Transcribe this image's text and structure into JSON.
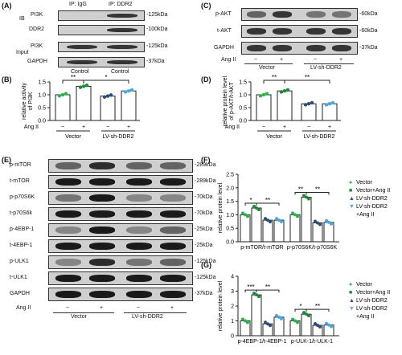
{
  "panels": {
    "A": "(A)",
    "B": "(B)",
    "C": "(C)",
    "D": "(D)",
    "E": "(E)",
    "F": "(F)",
    "G": "(G)"
  },
  "A": {
    "ip_igg": "IP: IgG",
    "ip_ddr2": "IP: DDR2",
    "ib": "IB",
    "input": "Input",
    "rows": [
      {
        "name": "PI3K",
        "kda": "-125kDa"
      },
      {
        "name": "DDR2",
        "kda": "-100kDa"
      },
      {
        "name": "PI3K",
        "kda": "-125kDa"
      },
      {
        "name": "GAPDH",
        "kda": "-37kDa"
      }
    ],
    "control1": "Control",
    "control2": "Control"
  },
  "C": {
    "rows": [
      {
        "name": "p-AKT",
        "kda": "-60kDa"
      },
      {
        "name": "t-AKT",
        "kda": "-60kDa"
      },
      {
        "name": "GAPDH",
        "kda": "-37kDa"
      }
    ],
    "angii": "Ang II",
    "minus": "−",
    "plus": "+",
    "vector": "Vector",
    "lv": "LV-sh-DDR2"
  },
  "E": {
    "rows": [
      {
        "name": "p-mTOR",
        "kda": "-289kDa"
      },
      {
        "name": "t-mTOR",
        "kda": "-289kDa"
      },
      {
        "name": "p-p70S6K",
        "kda": "-70kDa"
      },
      {
        "name": "t-p70S6k",
        "kda": "-70kDa"
      },
      {
        "name": "p-4EBP-1",
        "kda": "-25kDa"
      },
      {
        "name": "t-4EBP-1",
        "kda": "-25kDa"
      },
      {
        "name": "p-ULK1",
        "kda": "-125kDa"
      },
      {
        "name": "t-ULK1",
        "kda": "-125kDa"
      },
      {
        "name": "GAPDH",
        "kda": "-37kDa"
      }
    ],
    "angii": "Ang II",
    "minus": "−",
    "plus": "+",
    "vector": "Vector",
    "lv": "LV-sh-DDR2"
  },
  "sig": {
    "ss": "**",
    "s": "*",
    "sss": "***"
  },
  "legend": [
    "Vector",
    "Vector+Ang II",
    "LV-sh-DDR2",
    "LV-sh-DDR2",
    "+Ang II"
  ],
  "colors": {
    "vector": "#2db34a",
    "vector_ang": "#1f8a36",
    "lv": "#2a4f7a",
    "lv_ang": "#4aa8e0"
  },
  "chart_data": [
    {
      "type": "bar",
      "panel": "B",
      "ylabel": "relative activity of PI3K",
      "ylim": [
        0,
        1.5
      ],
      "yticks": [
        "0.0",
        "0.5",
        "1.0",
        "1.5"
      ],
      "xlabel_row": "Ang II",
      "groups": [
        "Vector",
        "LV-sh-DDR2"
      ],
      "categories": [
        "−",
        "+",
        "−",
        "+"
      ],
      "values": [
        1.0,
        1.33,
        0.95,
        1.15
      ]
    },
    {
      "type": "bar",
      "panel": "D",
      "ylabel": "relative protein level of p-AKT/t-AKT",
      "ylim": [
        0,
        1.5
      ],
      "yticks": [
        "0.0",
        "0.5",
        "1.0",
        "1.5"
      ],
      "xlabel_row": "Ang II",
      "groups": [
        "Vector",
        "LV-sh-DDR2"
      ],
      "categories": [
        "−",
        "+",
        "−",
        "+"
      ],
      "values": [
        1.0,
        1.15,
        0.65,
        0.65
      ]
    },
    {
      "type": "bar",
      "panel": "F",
      "ylabel": "relative protein level",
      "ylim": [
        0,
        2.5
      ],
      "yticks": [
        "0.0",
        "0.5",
        "1.0",
        "1.5",
        "2.0",
        "2.5"
      ],
      "groups": [
        "p-mTOR/t-mTOR",
        "p-p70S6K/t-p70S6K"
      ],
      "series": [
        {
          "name": "Vector",
          "values": [
            1.0,
            1.0
          ]
        },
        {
          "name": "Vector+Ang II",
          "values": [
            1.25,
            1.65
          ]
        },
        {
          "name": "LV-sh-DDR2",
          "values": [
            0.8,
            0.7
          ]
        },
        {
          "name": "LV-sh-DDR2 +Ang II",
          "values": [
            0.8,
            0.72
          ]
        }
      ]
    },
    {
      "type": "bar",
      "panel": "G",
      "ylabel": "relative protein level",
      "ylim": [
        0,
        4
      ],
      "yticks": [
        "0",
        "1",
        "2",
        "3",
        "4"
      ],
      "groups": [
        "p-4EBP-1/t-4EBP-1",
        "p-ULK-1/t-ULK-1"
      ],
      "series": [
        {
          "name": "Vector",
          "values": [
            1.0,
            1.0
          ]
        },
        {
          "name": "Vector+Ang II",
          "values": [
            2.75,
            1.45
          ]
        },
        {
          "name": "LV-sh-DDR2",
          "values": [
            0.8,
            0.7
          ]
        },
        {
          "name": "LV-sh-DDR2 +Ang II",
          "values": [
            1.25,
            0.72
          ]
        }
      ]
    }
  ]
}
